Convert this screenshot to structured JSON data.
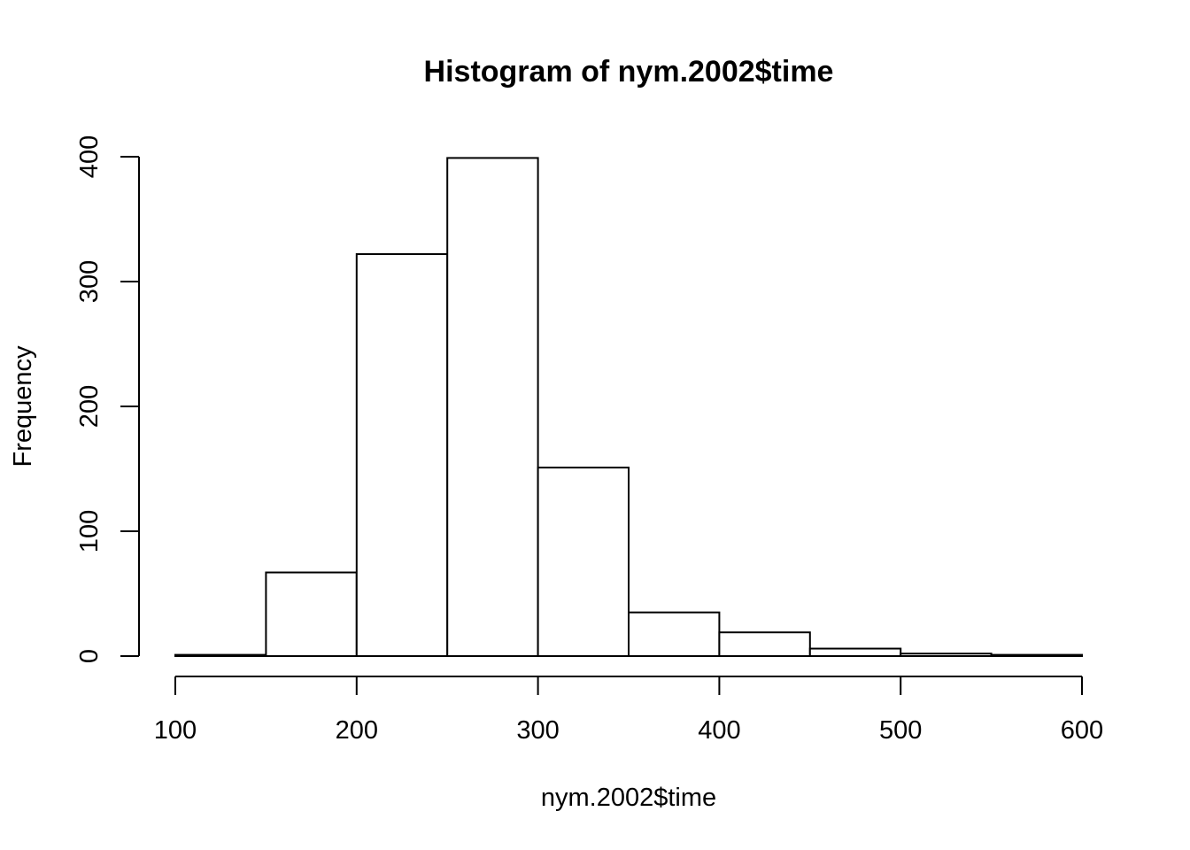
{
  "chart_data": {
    "type": "bar",
    "title": "Histogram of nym.2002$time",
    "xlabel": "nym.2002$time",
    "ylabel": "Frequency",
    "bins": [
      {
        "from": 100,
        "to": 150,
        "count": 1
      },
      {
        "from": 150,
        "to": 200,
        "count": 67
      },
      {
        "from": 200,
        "to": 250,
        "count": 322
      },
      {
        "from": 250,
        "to": 300,
        "count": 399
      },
      {
        "from": 300,
        "to": 350,
        "count": 151
      },
      {
        "from": 350,
        "to": 400,
        "count": 35
      },
      {
        "from": 400,
        "to": 450,
        "count": 19
      },
      {
        "from": 450,
        "to": 500,
        "count": 6
      },
      {
        "from": 500,
        "to": 550,
        "count": 2
      },
      {
        "from": 550,
        "to": 600,
        "count": 1
      }
    ],
    "xlim": [
      100,
      600
    ],
    "ylim": [
      0,
      400
    ],
    "xticks": [
      100,
      200,
      300,
      400,
      500,
      600
    ],
    "xtick_labels": [
      "100",
      "200",
      "300",
      "400",
      "500",
      "600"
    ],
    "yticks": [
      0,
      100,
      200,
      300,
      400
    ],
    "ytick_labels": [
      "0",
      "100",
      "200",
      "300",
      "400"
    ],
    "grid": false,
    "legend": "none",
    "colors": {
      "bar_fill": "#ffffff",
      "bar_stroke": "#000000"
    }
  }
}
